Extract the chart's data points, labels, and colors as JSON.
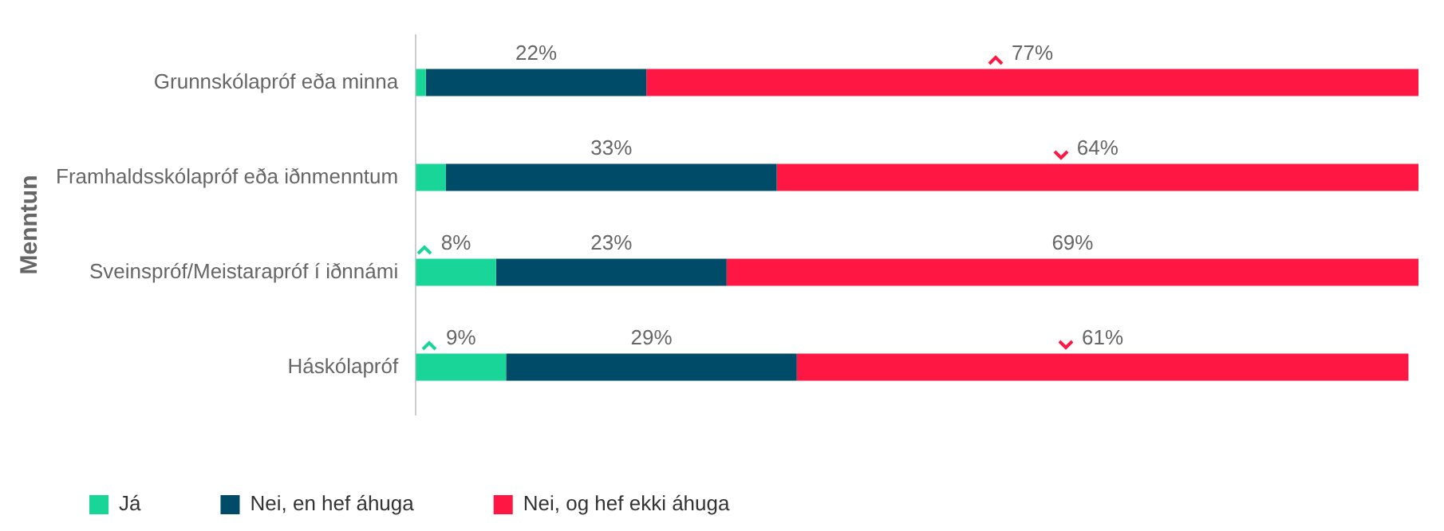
{
  "chart_data": {
    "type": "bar",
    "orientation": "horizontal",
    "stacked": true,
    "ylabel": "Menntun",
    "legend": "bottom left",
    "grid": false,
    "xlim": [
      0,
      100
    ],
    "data_labels": false,
    "categories": [
      "Grunnskólapróf eða minna",
      "Framhaldsskólapróf eða iðnmenntum",
      "Sveinspróf/Meistarapróf í iðnnámi",
      "Háskólapróf"
    ],
    "series": [
      {
        "name": "Já",
        "color": "#1ad598",
        "values": [
          1,
          3,
          8,
          9
        ],
        "value_labels": [
          null,
          null,
          "8%",
          "9%"
        ]
      },
      {
        "name": "Nei, en hef áhuga",
        "color": "#004b68",
        "values": [
          22,
          33,
          23,
          29
        ],
        "value_labels": [
          "22%",
          "33%",
          "23%",
          "29%"
        ]
      },
      {
        "name": "Nei, og hef ekki áhuga",
        "color": "#ff1744",
        "values": [
          77,
          64,
          69,
          61
        ],
        "value_labels": [
          "77%",
          "64%",
          "69%",
          "61%"
        ]
      }
    ]
  }
}
